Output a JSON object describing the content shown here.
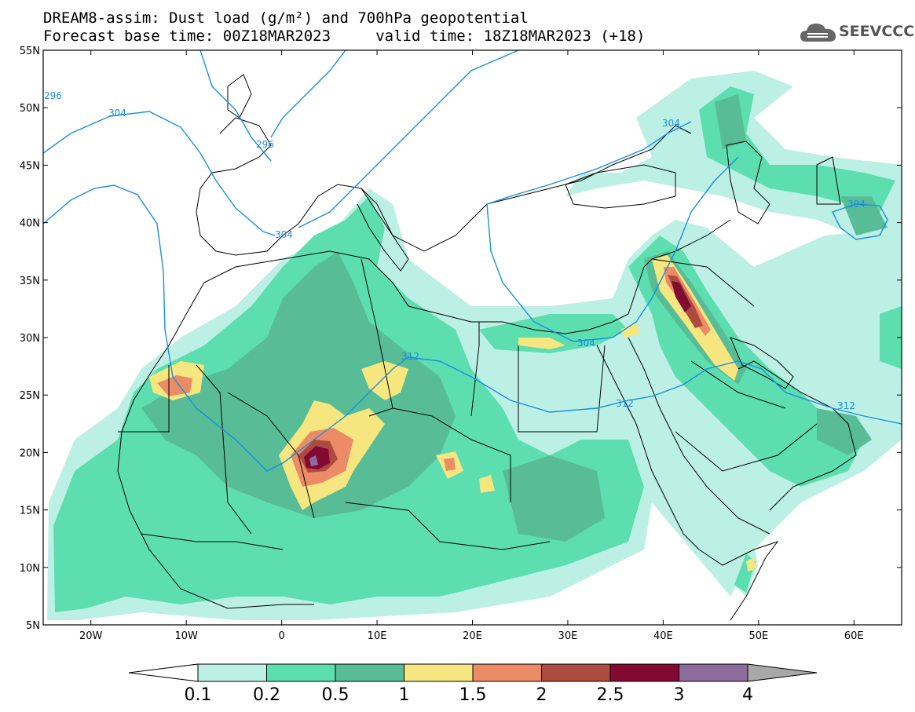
{
  "title": {
    "line1": "DREAM8-assim: Dust load (g/m²) and 700hPa geopotential",
    "line2": "Forecast base time: 00Z18MAR2023     valid time: 18Z18MAR2023 (+18)"
  },
  "logo": {
    "text": "SEEVCCC",
    "icon": "cloud-icon"
  },
  "map": {
    "lon_range": [
      -25,
      65
    ],
    "lat_range": [
      5,
      55
    ],
    "lon_ticks": [
      "20W",
      "10W",
      "0",
      "10E",
      "20E",
      "30E",
      "40E",
      "50E",
      "60E"
    ],
    "lat_ticks": [
      "55N",
      "50N",
      "45N",
      "40N",
      "35N",
      "30N",
      "25N",
      "20N",
      "15N",
      "10N",
      "5N"
    ],
    "contour_labels": [
      "296",
      "304",
      "296",
      "304",
      "312",
      "304",
      "312",
      "304",
      "312",
      "304"
    ]
  },
  "colorbar": {
    "levels": [
      "0.1",
      "0.2",
      "0.5",
      "1",
      "1.5",
      "2",
      "2.5",
      "3",
      "4"
    ],
    "colors": [
      "#ffffff",
      "#bdf0e4",
      "#5cdeb0",
      "#58bd96",
      "#f5e680",
      "#eb8c66",
      "#ad4b40",
      "#820a32",
      "#8c6c9c",
      "#a8a8a8"
    ]
  },
  "palette": {
    "light": "#bdf0e4",
    "mid": "#5cdeb0",
    "dark": "#58bd96",
    "yellow": "#f5e680",
    "orange": "#eb8c66",
    "brown": "#ad4b40",
    "maroon": "#820a32",
    "purple": "#8c6c9c",
    "contour": "#1a8fe0"
  }
}
